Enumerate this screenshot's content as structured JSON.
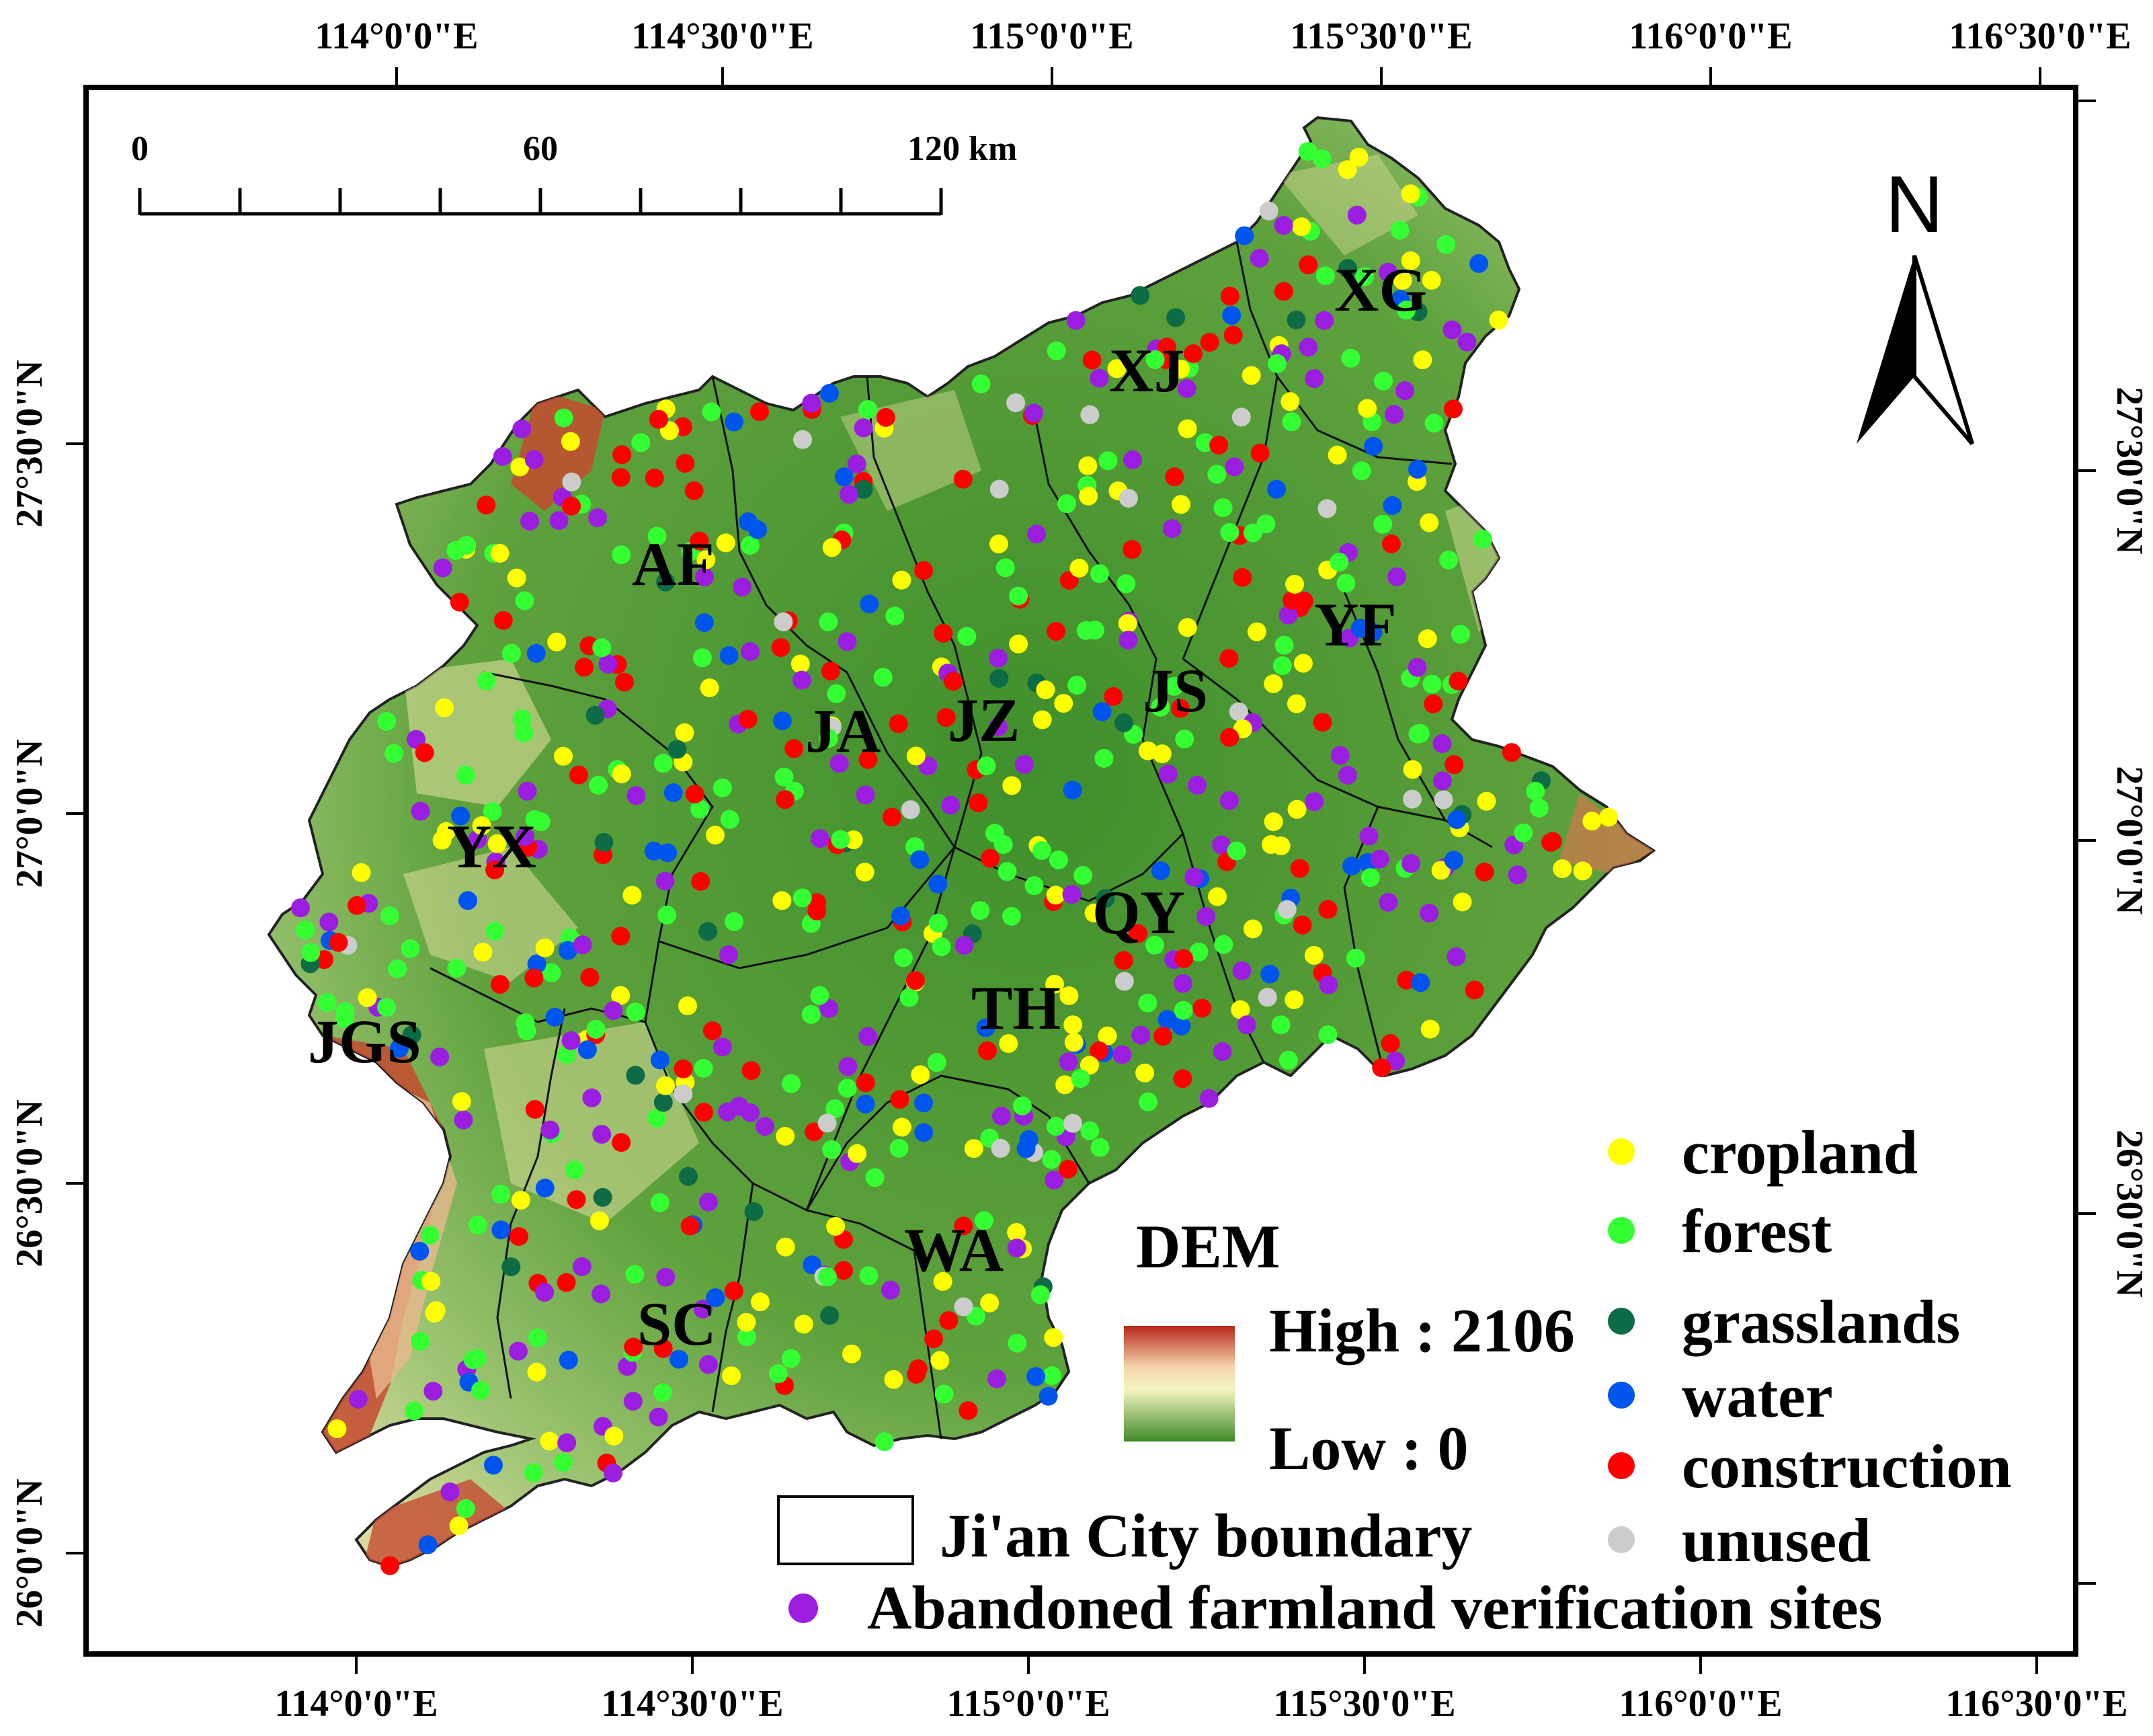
{
  "map": {
    "top_lon_labels": [
      "114°0'0\"E",
      "114°30'0\"E",
      "115°0'0\"E",
      "115°30'0\"E",
      "116°0'0\"E",
      "116°30'0\"E"
    ],
    "bottom_lon_labels": [
      "114°0'0\"E",
      "114°30'0\"E",
      "115°0'0\"E",
      "115°30'0\"E",
      "116°0'0\"E",
      "116°30'0\"E"
    ],
    "left_lat_labels": [
      "27°30'0\"N",
      "27°0'0\"N",
      "26°30'0\"N",
      "26°0'0\"N"
    ],
    "right_lat_labels": [
      "27°30'0\"N",
      "27°0'0\"N",
      "26°30'0\"N"
    ],
    "county_codes": [
      "XG",
      "XJ",
      "AF",
      "YF",
      "JS",
      "JZ",
      "JA",
      "YX",
      "QY",
      "TH",
      "JGS",
      "WA",
      "SC"
    ]
  },
  "scale_bar": {
    "labels": [
      "0",
      "60",
      "120 km"
    ]
  },
  "north_arrow": {
    "label": "N",
    "icon": "north-arrow-icon"
  },
  "legend": {
    "dem_title": "DEM",
    "dem_high": "High : 2106",
    "dem_low": "Low : 0",
    "dem_colors": [
      "#b8261a",
      "#f3d2a8",
      "#f5f5bf",
      "#3f8a2a"
    ],
    "land_use": [
      {
        "label": "cropland",
        "color": "#ffff00"
      },
      {
        "label": "forest",
        "color": "#33ff33"
      },
      {
        "label": "grasslands",
        "color": "#0d6b45"
      },
      {
        "label": "water",
        "color": "#0055ee"
      },
      {
        "label": "construction",
        "color": "#ff0000"
      },
      {
        "label": "unused",
        "color": "#cccccc"
      }
    ],
    "boundary_label": "Ji'an City boundary",
    "abandoned_label": "Abandoned farmland verification sites",
    "abandoned_color": "#9b1ee0"
  }
}
